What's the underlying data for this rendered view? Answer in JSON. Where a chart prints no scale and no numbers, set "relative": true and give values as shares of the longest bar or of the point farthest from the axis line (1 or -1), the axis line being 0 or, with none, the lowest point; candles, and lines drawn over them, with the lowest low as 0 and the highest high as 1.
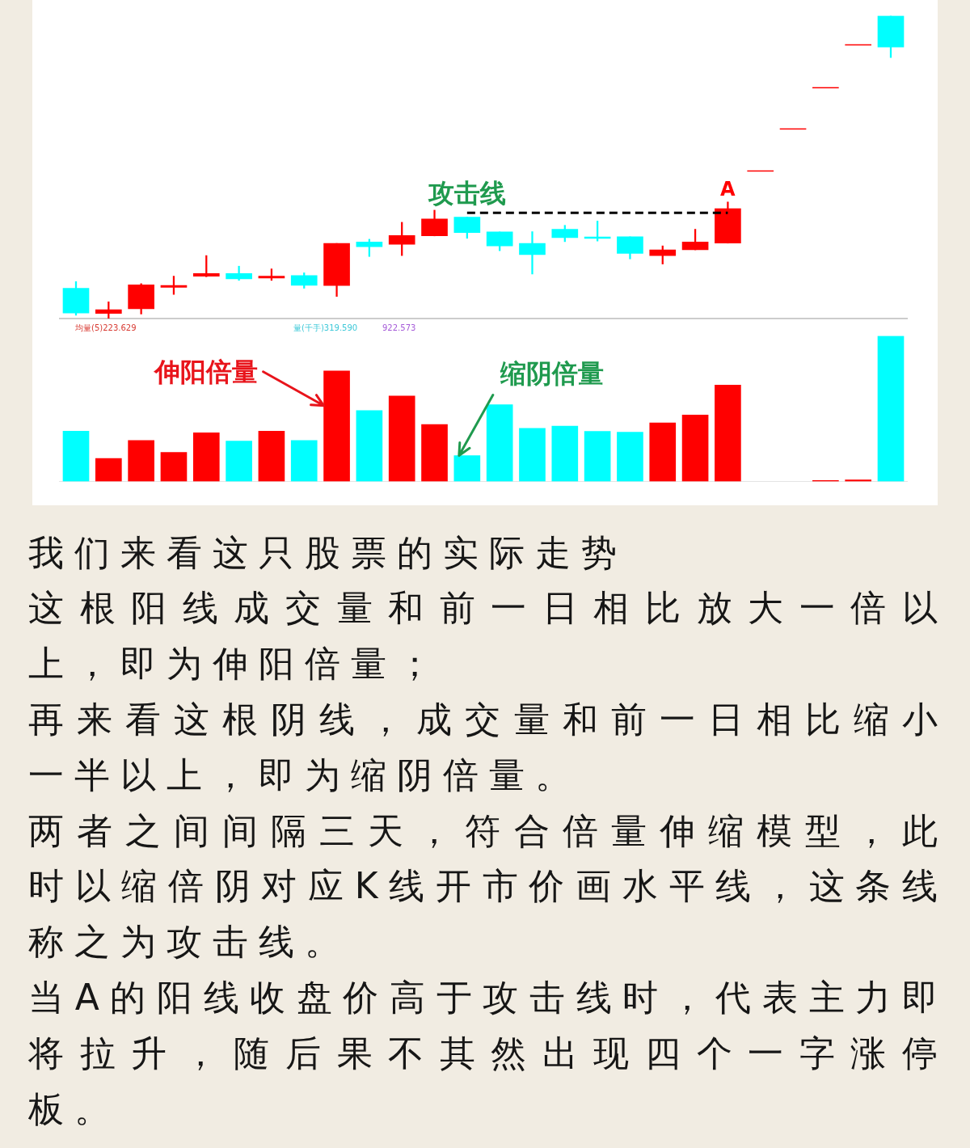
{
  "chart_data": [
    {
      "type": "candlestick",
      "relative": true,
      "categories": [
        null,
        null,
        null,
        null,
        null,
        null,
        null,
        null,
        null,
        null,
        null,
        null,
        null,
        null,
        null,
        null,
        null,
        null,
        null,
        null,
        null,
        null,
        null,
        null,
        null,
        null
      ],
      "ohlc": [
        [
          0.1,
          0.122,
          0.011,
          0.018
        ],
        [
          0.017,
          0.055,
          0,
          0.029
        ],
        [
          0.032,
          0.115,
          0.015,
          0.111
        ],
        [
          0.103,
          0.14,
          0.08,
          0.109
        ],
        [
          0.14,
          0.208,
          0.138,
          0.149
        ],
        [
          0.149,
          0.173,
          0.126,
          0.131
        ],
        [
          0.134,
          0.164,
          0.126,
          0.14
        ],
        [
          0.142,
          0.151,
          0.1,
          0.11
        ],
        [
          0.109,
          0.248,
          0.073,
          0.248
        ],
        [
          0.253,
          0.262,
          0.205,
          0.237
        ],
        [
          0.245,
          0.318,
          0.208,
          0.274
        ],
        [
          0.273,
          0.358,
          0.273,
          0.329
        ],
        [
          0.335,
          0.335,
          0.265,
          0.284
        ],
        [
          0.286,
          0.286,
          0.224,
          0.24
        ],
        [
          0.248,
          0.287,
          0.147,
          0.211
        ],
        [
          0.295,
          0.308,
          0.254,
          0.267
        ],
        [
          0.268,
          0.322,
          0.256,
          0.266
        ],
        [
          0.27,
          0.27,
          0.197,
          0.215
        ],
        [
          0.208,
          0.24,
          0.18,
          0.227
        ],
        [
          0.227,
          0.295,
          0.227,
          0.253
        ],
        [
          0.249,
          0.385,
          0.249,
          0.363
        ],
        [
          0.488,
          0.488,
          0.488,
          0.488
        ],
        [
          0.625,
          0.625,
          0.625,
          0.625
        ],
        [
          0.762,
          0.762,
          0.762,
          0.762
        ],
        [
          0.903,
          0.903,
          0.903,
          0.903
        ],
        [
          1,
          1,
          0.862,
          0.897
        ]
      ],
      "colors": [
        "#00ffff",
        "#ff0000",
        "#ff0000",
        "#ff0000",
        "#ff0000",
        "#00ffff",
        "#ff0000",
        "#00ffff",
        "#ff0000",
        "#00ffff",
        "#ff0000",
        "#ff0000",
        "#00ffff",
        "#00ffff",
        "#00ffff",
        "#00ffff",
        "#00ffff",
        "#00ffff",
        "#ff0000",
        "#ff0000",
        "#ff0000",
        "#ff0000",
        "#ff0000",
        "#ff0000",
        "#ff0000",
        "#00ffff"
      ],
      "series": [
        {
          "type": "line",
          "name": "攻击线",
          "color": "#000000",
          "line_style": "dashed",
          "marker": "none",
          "values": [
            null,
            null,
            null,
            null,
            null,
            null,
            null,
            null,
            null,
            null,
            null,
            null,
            0.349,
            0.349,
            0.349,
            0.349,
            0.349,
            0.349,
            0.349,
            0.349,
            0.349,
            null,
            null,
            null,
            null,
            null
          ]
        }
      ],
      "annotations": [
        {
          "text": "A",
          "y": 0.385
        }
      ]
    },
    {
      "type": "bar",
      "relative": true,
      "categories": [
        null,
        null,
        null,
        null,
        null,
        null,
        null,
        null,
        null,
        null,
        null,
        null,
        null,
        null,
        null,
        null,
        null,
        null,
        null,
        null,
        null,
        null,
        null,
        null,
        null,
        null
      ],
      "values": [
        0.346,
        0.158,
        0.281,
        0.199,
        0.335,
        0.277,
        0.346,
        0.281,
        0.76,
        0.488,
        0.588,
        0.392,
        0.178,
        0.528,
        0.365,
        0.381,
        0.344,
        0.339,
        0.403,
        0.457,
        0.662,
        null,
        null,
        0.006,
        0.011,
        1
      ],
      "colors": [
        "#00ffff",
        "#ff0000",
        "#ff0000",
        "#ff0000",
        "#ff0000",
        "#00ffff",
        "#ff0000",
        "#00ffff",
        "#ff0000",
        "#00ffff",
        "#ff0000",
        "#ff0000",
        "#00ffff",
        "#00ffff",
        "#00ffff",
        "#00ffff",
        "#00ffff",
        "#00ffff",
        "#ff0000",
        "#ff0000",
        "#ff0000",
        "#ff0000",
        "#ff0000",
        "#ff0000",
        "#ff0000",
        "#00ffff"
      ],
      "annotations": [
        "均量(5)223.629",
        "量(千手)319.590",
        "922.573",
        "伸阳倍量",
        "缩阴倍量"
      ]
    },
    {
      "type": "other",
      "annotations": [
        "我们来看这只股票的实际走势",
        "这根阳线成交量和前一日相比放大一倍以上，即为伸阳倍量；",
        "再来看这根阴线，成交量和前一日相比缩小一半以上，即为缩阴倍量。",
        "两者之间间隔三天，符合倍量伸缩模型，此时以缩倍阴对应K线开市价画水平线，这条线称之为攻击线。",
        "当A的阳线收盘价高于攻击线时，代表主力即将拉升，随后果不其然出现四个一字涨停板。"
      ]
    }
  ]
}
